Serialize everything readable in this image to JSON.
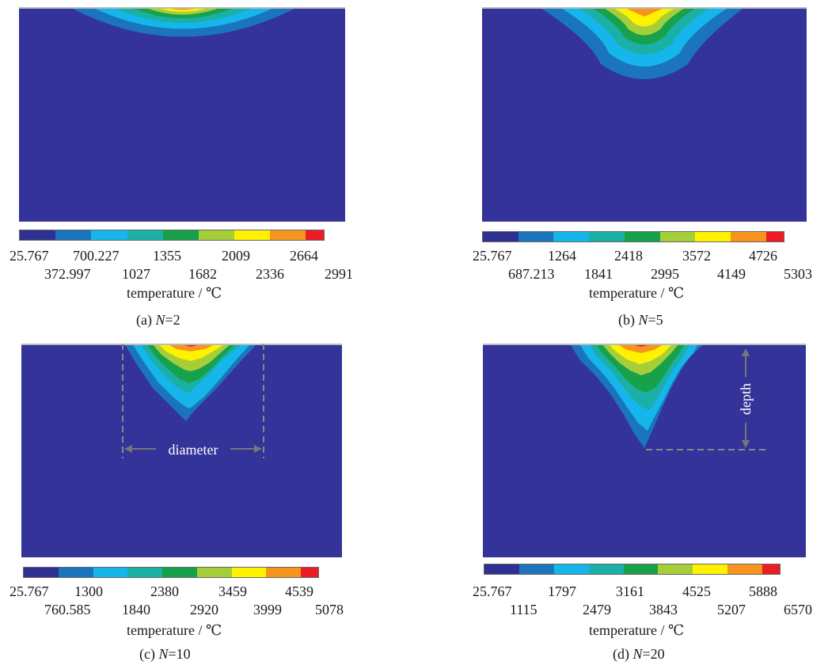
{
  "colors": {
    "background_field": "#333399",
    "scale": [
      "#2e3192",
      "#1a75bc",
      "#16b6ec",
      "#1bb0a5",
      "#17a14a",
      "#a6ce39",
      "#fff200",
      "#f7941d",
      "#ed1c24"
    ]
  },
  "legend_title": "temperature / ℃",
  "panels": [
    {
      "caption_prefix": "(a) ",
      "caption_var": "N",
      "caption_suffix": "=2",
      "ticks_top": [
        "25.767",
        "700.227",
        "1355",
        "2009",
        "2664"
      ],
      "ticks_bottom": [
        "372.997",
        "1027",
        "1682",
        "2336",
        "2991"
      ]
    },
    {
      "caption_prefix": "(b) ",
      "caption_var": "N",
      "caption_suffix": "=5",
      "ticks_top": [
        "25.767",
        "1264",
        "2418",
        "3572",
        "4726"
      ],
      "ticks_bottom": [
        "687.213",
        "1841",
        "2995",
        "4149",
        "5303"
      ]
    },
    {
      "caption_prefix": "(c) ",
      "caption_var": "N",
      "caption_suffix": "=10",
      "ticks_top": [
        "25.767",
        "1300",
        "2380",
        "3459",
        "4539"
      ],
      "ticks_bottom": [
        "760.585",
        "1840",
        "2920",
        "3999",
        "5078"
      ],
      "annotation": "diameter"
    },
    {
      "caption_prefix": "(d) ",
      "caption_var": "N",
      "caption_suffix": "=20",
      "ticks_top": [
        "25.767",
        "1797",
        "3161",
        "4525",
        "5888"
      ],
      "ticks_bottom": [
        "1115",
        "2479",
        "3843",
        "5207",
        "6570"
      ],
      "annotation": "depth"
    }
  ]
}
